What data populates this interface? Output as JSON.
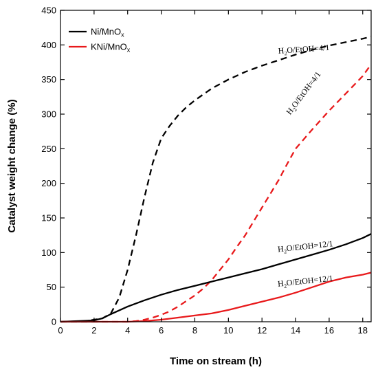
{
  "chart_data": {
    "type": "line",
    "xlabel": "Time on stream (h)",
    "ylabel": "Catalyst weight change (%)",
    "xlim": [
      0,
      18.5
    ],
    "ylim": [
      0,
      450
    ],
    "xticks": [
      0,
      2,
      4,
      6,
      8,
      10,
      12,
      14,
      16,
      18
    ],
    "yticks": [
      0,
      50,
      100,
      150,
      200,
      250,
      300,
      350,
      400,
      450
    ],
    "grid": false,
    "legend": {
      "placement": "top-left",
      "entries": [
        {
          "label": "Ni/MnO",
          "sub": "x",
          "color": "#000000"
        },
        {
          "label": "KNi/MnO",
          "sub": "x",
          "color": "#e8191b"
        }
      ]
    },
    "series": [
      {
        "catalyst": "Ni/MnOx",
        "condition": "H2O/EtOH=4/1",
        "color": "#000000",
        "dash": true,
        "x": [
          0,
          1.5,
          2.5,
          3,
          3.5,
          4,
          4.5,
          5,
          5.5,
          6,
          6.5,
          7,
          7.5,
          8,
          9,
          10,
          11,
          12,
          13,
          14,
          15,
          16,
          17,
          18,
          18.5
        ],
        "y": [
          0,
          1,
          5,
          12,
          35,
          75,
          125,
          180,
          230,
          265,
          283,
          298,
          310,
          320,
          337,
          350,
          361,
          370,
          378,
          386,
          393,
          399,
          404,
          409,
          412
        ]
      },
      {
        "catalyst": "KNi/MnOx",
        "condition": "H2O/EtOH=4/1",
        "color": "#e8191b",
        "dash": true,
        "x": [
          0,
          3,
          4,
          4.5,
          5,
          5.5,
          6,
          6.5,
          7,
          7.5,
          8,
          8.5,
          9,
          9.5,
          10,
          10.5,
          11,
          11.5,
          12,
          12.5,
          13,
          13.5,
          14,
          14.5,
          15,
          16,
          17,
          18,
          18.5
        ],
        "y": [
          0,
          0,
          0,
          1,
          3,
          6,
          10,
          15,
          22,
          30,
          38,
          48,
          60,
          75,
          90,
          108,
          125,
          145,
          165,
          185,
          205,
          228,
          250,
          264,
          278,
          305,
          330,
          355,
          372
        ]
      },
      {
        "catalyst": "Ni/MnOx",
        "condition": "H2O/EtOH=12/1",
        "color": "#000000",
        "dash": false,
        "x": [
          0,
          1,
          2,
          2.5,
          3,
          4,
          5,
          6,
          7,
          8,
          9,
          10,
          11,
          12,
          13,
          14,
          15,
          16,
          17,
          18,
          18.5
        ],
        "y": [
          0,
          1,
          2,
          5,
          11,
          22,
          31,
          39,
          46,
          52,
          58,
          64,
          70,
          76,
          83,
          90,
          97,
          104,
          112,
          121,
          127
        ]
      },
      {
        "catalyst": "KNi/MnOx",
        "condition": "H2O/EtOH=12/1",
        "color": "#e8191b",
        "dash": false,
        "x": [
          0,
          4,
          5,
          6,
          7,
          8,
          9,
          10,
          11,
          12,
          13,
          14,
          15,
          16,
          17,
          18,
          18.5
        ],
        "y": [
          0,
          0,
          1,
          3,
          6,
          9,
          12,
          17,
          23,
          29,
          35,
          42,
          50,
          58,
          64,
          68,
          71
        ]
      }
    ],
    "annotations": [
      {
        "text": "H2O/EtOH=4/1",
        "x": 14.5,
        "y": 390,
        "angle": -4
      },
      {
        "text": "H2O/EtOH=4/1",
        "x": 14.6,
        "y": 328,
        "angle": -53
      },
      {
        "text": "H2O/EtOH=12/1",
        "x": 14.6,
        "y": 105,
        "angle": -6
      },
      {
        "text": "H2O/EtOH=12/1",
        "x": 14.6,
        "y": 55,
        "angle": -6
      }
    ]
  }
}
